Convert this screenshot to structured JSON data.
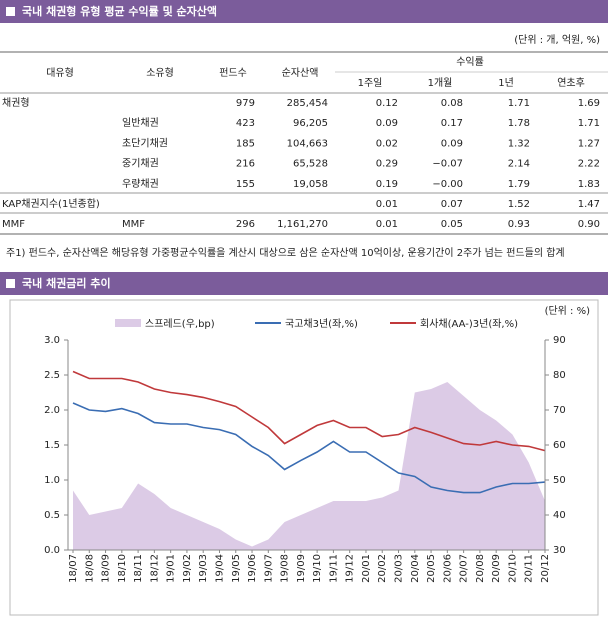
{
  "header": {
    "title": "국내 채권형 유형 평균 수익률 및 순자산액"
  },
  "table": {
    "unit": "(단위 : 개, 억원, %)",
    "headers": [
      "대유형",
      "소유형",
      "펀드수",
      "순자산액"
    ],
    "return_header": "수익률",
    "return_periods": [
      "1주일",
      "1개월",
      "1년",
      "연초후"
    ],
    "rows": [
      [
        "채권형",
        null,
        "979",
        "285,454",
        "0.12",
        "0.08",
        "1.71",
        "1.69"
      ],
      [
        null,
        "일반채권",
        "423",
        "96,205",
        "0.09",
        "0.17",
        "1.78",
        "1.71"
      ],
      [
        null,
        "초단기채권",
        "185",
        "104,663",
        "0.02",
        "0.09",
        "1.32",
        "1.27"
      ],
      [
        null,
        "중기채권",
        "216",
        "65,528",
        "0.29",
        "−0.07",
        "2.14",
        "2.22"
      ],
      [
        null,
        "우량채권",
        "155",
        "19,058",
        "0.19",
        "−0.00",
        "1.79",
        "1.83"
      ],
      [
        "KAP채권지수(1년종합)",
        null,
        null,
        null,
        "0.01",
        "0.07",
        "1.52",
        "1.47"
      ],
      [
        "MMF",
        "MMF",
        "296",
        "1,161,270",
        "0.01",
        "0.05",
        "0.93",
        "0.90"
      ]
    ]
  },
  "note": "주1) 펀드수, 순자산액은 해당유형 가중평균수익률을 계산시 대상으로 삼은 순자산액 10억이상, 운용기간이 2주가 넘는 펀드들의 합계",
  "chart_data": {
    "type": "line",
    "title": "국내 채권금리 추이",
    "unit": "(단위 : %)",
    "categories": [
      "18/07",
      "18/08",
      "18/09",
      "18/10",
      "18/11",
      "18/12",
      "19/01",
      "19/02",
      "19/03",
      "19/04",
      "19/05",
      "19/06",
      "19/07",
      "19/08",
      "19/09",
      "19/10",
      "19/11",
      "19/12",
      "20/01",
      "20/02",
      "20/03",
      "20/04",
      "20/05",
      "20/06",
      "20/07",
      "20/08",
      "20/09",
      "20/10",
      "20/11",
      "20/12"
    ],
    "series": [
      {
        "name": "스프레드(우,bp)",
        "kind": "area",
        "axis": "y2",
        "color": "#dccbe6",
        "values": [
          47,
          40,
          41,
          42,
          49,
          46,
          42,
          40,
          38,
          36,
          33,
          31,
          33,
          38,
          40,
          42,
          44,
          44,
          44,
          45,
          47,
          75,
          76,
          78,
          74,
          70,
          67,
          63,
          55,
          44
        ]
      },
      {
        "name": "국고채3년(좌,%)",
        "kind": "line",
        "color": "#3a6db3",
        "values": [
          2.1,
          2.0,
          1.98,
          2.02,
          1.95,
          1.82,
          1.8,
          1.8,
          1.75,
          1.72,
          1.65,
          1.48,
          1.35,
          1.15,
          1.28,
          1.4,
          1.55,
          1.4,
          1.4,
          1.25,
          1.1,
          1.05,
          0.9,
          0.85,
          0.82,
          0.82,
          0.9,
          0.95,
          0.95,
          0.97
        ]
      },
      {
        "name": "회사채(AA-)3년(좌,%)",
        "kind": "line",
        "color": "#c0393b",
        "values": [
          2.55,
          2.45,
          2.45,
          2.45,
          2.4,
          2.3,
          2.25,
          2.22,
          2.18,
          2.12,
          2.05,
          1.9,
          1.75,
          1.52,
          1.65,
          1.78,
          1.85,
          1.75,
          1.75,
          1.62,
          1.65,
          1.75,
          1.68,
          1.6,
          1.52,
          1.5,
          1.55,
          1.5,
          1.48,
          1.42
        ]
      }
    ],
    "ylim": [
      0,
      3
    ],
    "yticks": [
      {
        "value": 0,
        "label": "0.0"
      },
      0.5,
      {
        "value": 1,
        "label": "1.0"
      },
      1.5,
      {
        "value": 2,
        "label": "2.0"
      },
      2.5,
      {
        "value": 3,
        "label": "3.0"
      }
    ],
    "y2lim": [
      30,
      90
    ],
    "y2ticks": [
      30,
      40,
      50,
      60,
      70,
      80,
      90
    ]
  }
}
